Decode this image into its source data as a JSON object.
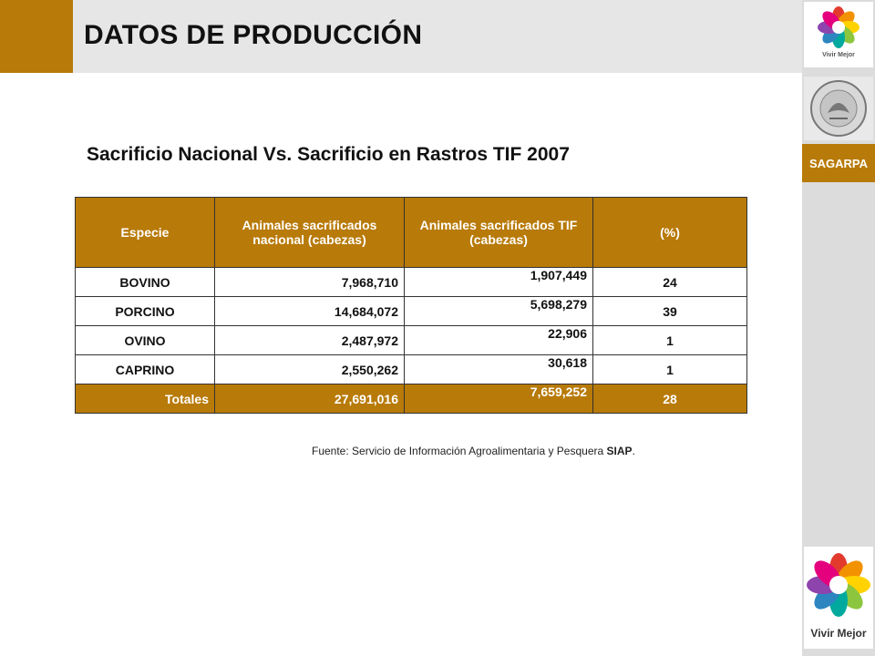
{
  "header": {
    "title": "DATOS DE PRODUCCIÓN"
  },
  "sidebar": {
    "logo_top_caption": "Vivir Mejor",
    "org_label": "SAGARPA",
    "logo_bottom_caption": "Vivir Mejor"
  },
  "main": {
    "subtitle": "Sacrificio Nacional Vs. Sacrificio en Rastros TIF 2007",
    "table": {
      "headers": [
        "Especie",
        "Animales sacrificados nacional (cabezas)",
        "Animales sacrificados TIF (cabezas)",
        "(%)"
      ],
      "rows": [
        [
          "BOVINO",
          "7,968,710",
          "1,907,449",
          "24"
        ],
        [
          "PORCINO",
          "14,684,072",
          "5,698,279",
          "39"
        ],
        [
          "OVINO",
          "2,487,972",
          "22,906",
          "1"
        ],
        [
          "CAPRINO",
          "2,550,262",
          "30,618",
          "1"
        ]
      ],
      "totals": [
        "Totales",
        "27,691,016",
        "7,659,252",
        "28"
      ]
    },
    "source": {
      "prefix": "Fuente: Servicio de Información Agroalimentaria y Pesquera ",
      "emphasis": "SIAP",
      "suffix": "."
    }
  },
  "colors": {
    "accent": "#b87a08",
    "header_bg": "#e6e6e6",
    "strip_bg": "#dcdcdc"
  },
  "icons": [
    "flower-logo-icon",
    "national-seal-icon"
  ]
}
